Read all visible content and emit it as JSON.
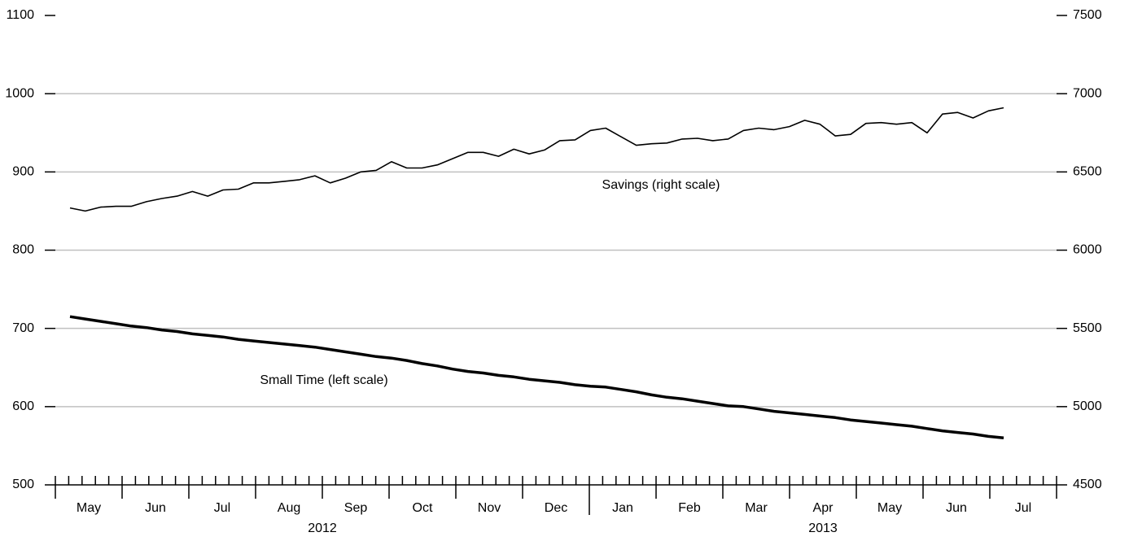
{
  "chart_data": {
    "type": "line",
    "months": [
      "May",
      "Jun",
      "Jul",
      "Aug",
      "Sep",
      "Oct",
      "Nov",
      "Dec",
      "Jan",
      "Feb",
      "Mar",
      "Apr",
      "May",
      "Jun",
      "Jul"
    ],
    "years": [
      "2012",
      "2013"
    ],
    "ylim": [
      500,
      1100
    ],
    "yticks": [
      500,
      600,
      700,
      800,
      900,
      1000,
      1100
    ],
    "y2lim": [
      4500,
      7500
    ],
    "y2ticks": [
      4500,
      5000,
      5500,
      6000,
      6500,
      7000,
      7500
    ],
    "grid": true,
    "annotations": [
      "Savings (right scale)",
      "Small Time (left scale)"
    ],
    "series": [
      {
        "name": "Savings (right scale)",
        "axis": "y2",
        "color": "#000000",
        "values": [
          6270,
          6250,
          6275,
          6280,
          6280,
          6310,
          6330,
          6345,
          6375,
          6345,
          6385,
          6390,
          6430,
          6430,
          6440,
          6450,
          6475,
          6430,
          6460,
          6500,
          6510,
          6565,
          6525,
          6525,
          6545,
          6585,
          6625,
          6625,
          6600,
          6645,
          6615,
          6640,
          6700,
          6705,
          6765,
          6780,
          6725,
          6670,
          6680,
          6685,
          6710,
          6715,
          6700,
          6710,
          6765,
          6780,
          6770,
          6790,
          6830,
          6805,
          6730,
          6740,
          6810,
          6815,
          6805,
          6815,
          6750,
          6870,
          6880,
          6845,
          6890,
          6910
        ]
      },
      {
        "name": "Small Time (left scale)",
        "color": "#000000",
        "values": [
          715,
          712,
          709,
          706,
          703,
          701,
          698,
          696,
          693,
          691,
          689,
          686,
          684,
          682,
          680,
          678,
          676,
          673,
          670,
          667,
          664,
          662,
          659,
          655,
          652,
          648,
          645,
          643,
          640,
          638,
          635,
          633,
          631,
          628,
          626,
          625,
          622,
          619,
          615,
          612,
          610,
          607,
          604,
          601,
          600,
          597,
          594,
          592,
          590,
          588,
          586,
          583,
          581,
          579,
          577,
          575,
          572,
          569,
          567,
          565,
          562,
          560
        ]
      }
    ]
  }
}
